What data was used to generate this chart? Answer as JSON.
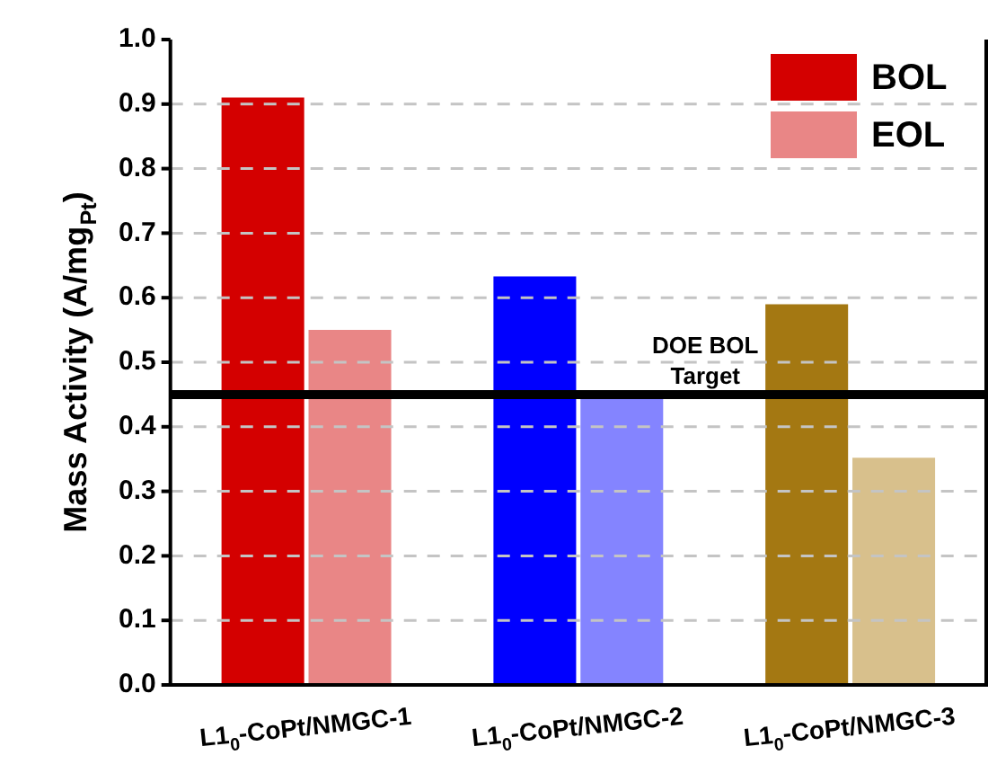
{
  "chart_data": {
    "type": "bar",
    "ylabel": "Mass Activity (A/mg$_{Pt}$)",
    "categories": [
      "L1$_{0}$-CoPt/NMGC-1",
      "L1$_{0}$-CoPt/NMGC-2",
      "L1$_{0}$-CoPt/NMGC-3"
    ],
    "series": [
      {
        "name": "BOL",
        "colors": [
          "#d40000",
          "#0000ff",
          "#a47812"
        ],
        "values": [
          0.91,
          0.633,
          0.59
        ]
      },
      {
        "name": "EOL",
        "colors": [
          "#e98686",
          "#8484ff",
          "#d8c08c"
        ],
        "values": [
          0.55,
          0.45,
          0.352
        ]
      }
    ],
    "ylim": [
      0,
      1
    ],
    "yticks": [
      {
        "value": 0,
        "label": "0.0"
      },
      0.1,
      0.2,
      0.3,
      0.4,
      0.5,
      0.6,
      0.7,
      0.8,
      0.9,
      {
        "value": 1,
        "label": "1.0"
      }
    ],
    "ref_lines": [
      {
        "axis": "y",
        "value": 0.45,
        "label": "DOE BOL\nTarget",
        "color": "#000000"
      }
    ],
    "grid": "y",
    "legend": "top right"
  }
}
